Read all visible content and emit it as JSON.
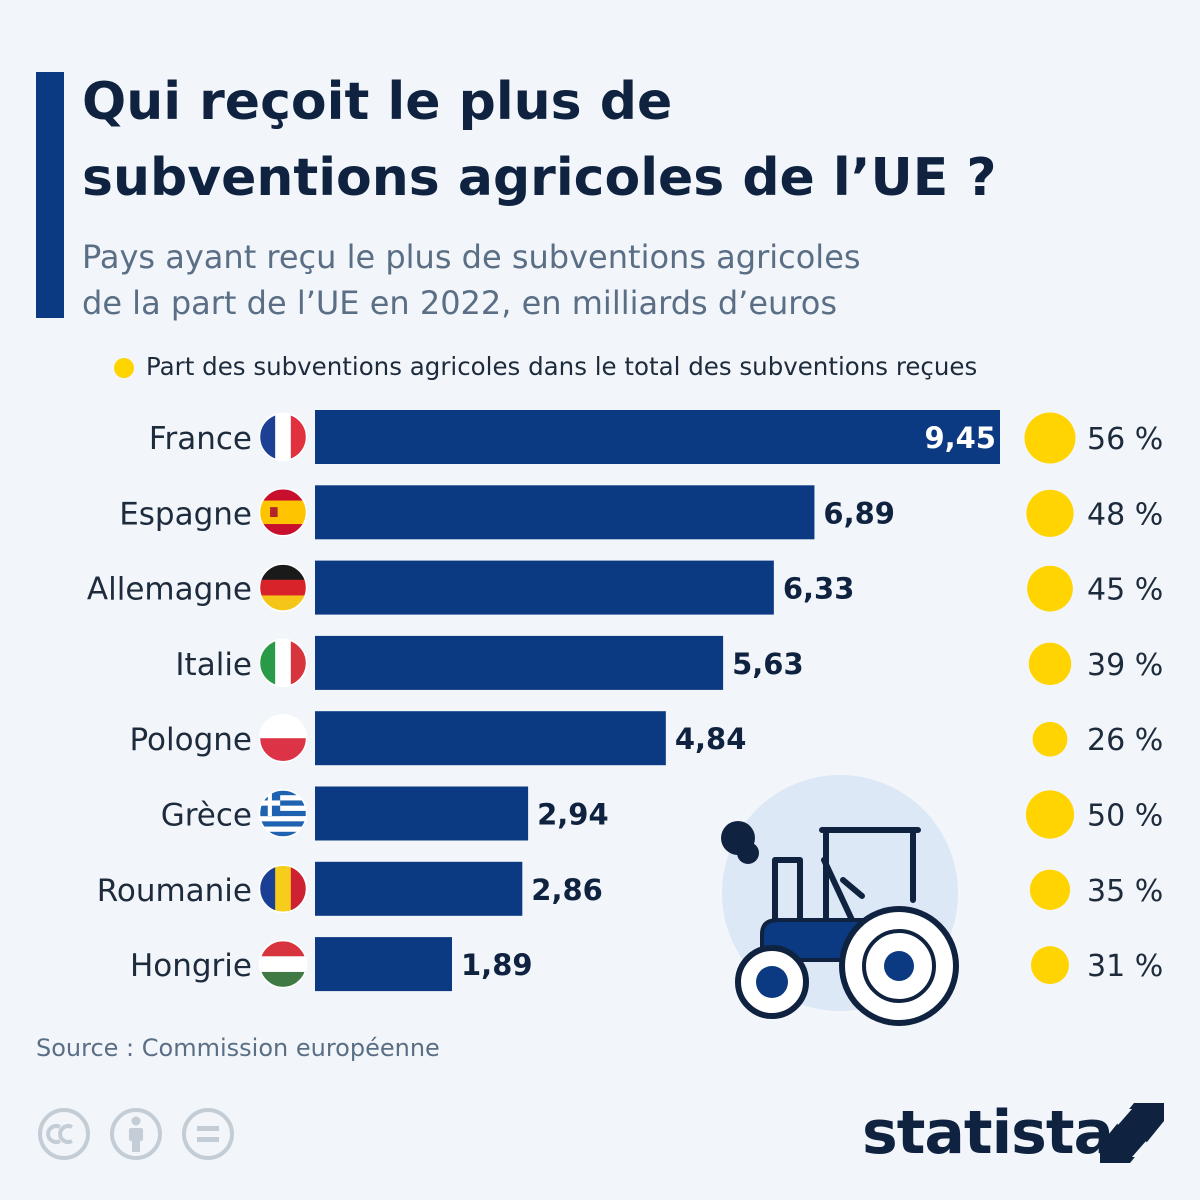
{
  "header": {
    "title_line1": "Qui reçoit le plus de",
    "title_line2": "subventions agricoles de l’UE ?",
    "subtitle_line1": "Pays ayant reçu le plus de subventions agricoles",
    "subtitle_line2": "de la part de l’UE en 2022, en milliards d’euros"
  },
  "legend": {
    "label": "Part des subventions agricoles dans le total des subventions reçues"
  },
  "colors": {
    "bar": "#0b3a82",
    "bubble": "#ffd400",
    "title": "#0f2340",
    "muted": "#5a6f85",
    "background": "#f2f6fa",
    "tractor_bg": "#dce8f6"
  },
  "chart_data": {
    "type": "bar",
    "orientation": "horizontal",
    "categories": [
      "France",
      "Espagne",
      "Allemagne",
      "Italie",
      "Pologne",
      "Grèce",
      "Roumanie",
      "Hongrie"
    ],
    "value_labels": [
      "9,45",
      "6,89",
      "6,33",
      "5,63",
      "4,84",
      "2,94",
      "2,86",
      "1,89"
    ],
    "share_labels": [
      "56 %",
      "48 %",
      "45 %",
      "39 %",
      "26 %",
      "50 %",
      "35 %",
      "31 %"
    ],
    "series": [
      {
        "values": [
          9.45,
          6.89,
          6.33,
          5.63,
          4.84,
          2.94,
          2.86,
          1.89
        ]
      },
      {
        "name": "Part des subventions agricoles dans le total des subventions reçues",
        "values": [
          56,
          48,
          45,
          39,
          26,
          50,
          35,
          31
        ]
      }
    ],
    "flags": [
      "flag-france-icon",
      "flag-spain-icon",
      "flag-germany-icon",
      "flag-italy-icon",
      "flag-poland-icon",
      "flag-greece-icon",
      "flag-romania-icon",
      "flag-hungary-icon"
    ],
    "xlim": [
      0,
      9.45
    ],
    "grid": false
  },
  "footer": {
    "source": "Source : Commission européenne",
    "brand": "statista",
    "license_icons": [
      "cc-icon",
      "attribution-icon",
      "no-derivatives-icon"
    ]
  }
}
